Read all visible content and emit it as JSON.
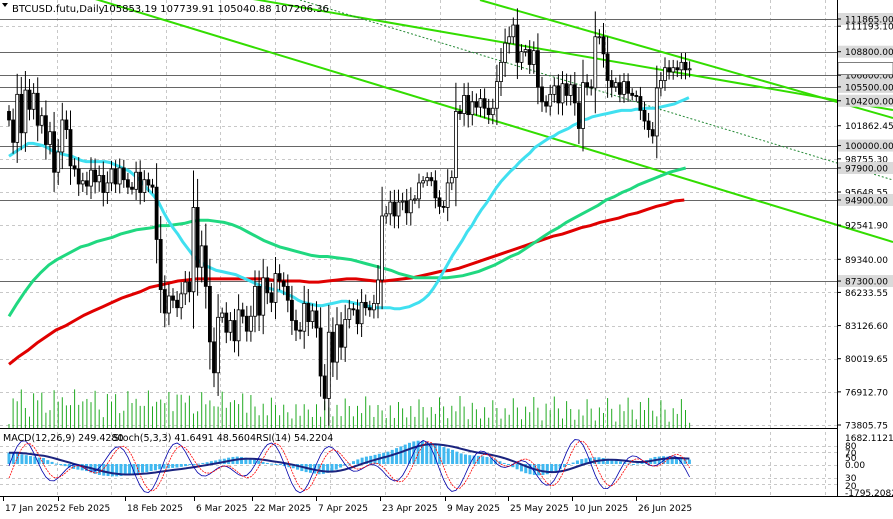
{
  "header": {
    "symbol": "BTCUSD.futu,Daily",
    "ohlc": "105853.19 107739.91 105040.88 107206.36"
  },
  "indicator_header": {
    "macd": "MACD(12,26,9) 249.4280",
    "stoch": "Stoch(5,3,3) 41.6491 48.5604",
    "rsi": "RSI(14) 54.2204"
  },
  "colors": {
    "background": "#ffffff",
    "grid": "#c8c8c8",
    "candle": "#000000",
    "ma_fast": "#40e0f0",
    "ma_mid": "#20d880",
    "ma_slow": "#e00000",
    "channel": "#33dd00",
    "macd_hist": "#40b8f0",
    "macd_signal": "#1a237e",
    "stoch_k": "#0000aa",
    "stoch_d": "#ff0000",
    "rsi": "#2020a0",
    "volume": "#22aa22",
    "level_box": "#dadada"
  },
  "chart_data": {
    "type": "candlestick",
    "timeframe": "Daily",
    "y_axis_labels": [
      "111865.00",
      "111193.10",
      "108800.00",
      "106600.00",
      "105500.00",
      "104200.00",
      "101862.45",
      "100000.00",
      "98755.30",
      "97900.00",
      "95648.55",
      "94900.00",
      "92541.90",
      "89340.00",
      "87300.00",
      "86233.55",
      "83126.60",
      "80019.65",
      "76912.70",
      "73805.75"
    ],
    "highlighted_levels": [
      111865.0,
      108800.0,
      106600.0,
      105500.0,
      104200.0,
      100000.0,
      97900.0,
      94900.0,
      87300.0
    ],
    "x_axis_labels": [
      "17 Jan 2025",
      "2 Feb 2025",
      "18 Feb 2025",
      "6 Mar 2025",
      "22 Mar 2025",
      "7 Apr 2025",
      "23 Apr 2025",
      "9 May 2025",
      "25 May 2025",
      "10 Jun 2025",
      "26 Jun 2025"
    ],
    "x_axis_label_positions": [
      0,
      16,
      32,
      48,
      64,
      80,
      96,
      112,
      128,
      144,
      160
    ],
    "ylim": [
      73805.75,
      113500
    ],
    "oscillator_axis_labels": [
      "1682.1121",
      "80",
      "70",
      "50",
      "0.00",
      "30",
      "20",
      "-1795.2082"
    ],
    "price_close": [
      102400,
      100300,
      104800,
      101200,
      105200,
      103400,
      104900,
      101900,
      102800,
      100100,
      101300,
      97500,
      99400,
      102400,
      101500,
      98100,
      97800,
      96400,
      96700,
      96200,
      97700,
      96600,
      97200,
      95600,
      96500,
      97800,
      96400,
      97900,
      96800,
      96100,
      95900,
      97500,
      95600,
      96800,
      96300,
      96100,
      91200,
      86500,
      84300,
      85900,
      85500,
      84800,
      86100,
      87200,
      86300,
      94200,
      88600,
      90600,
      86800,
      81600,
      78700,
      83900,
      84300,
      82500,
      83600,
      81700,
      84600,
      84000,
      82600,
      84000,
      86800,
      84100,
      87600,
      86200,
      85300,
      88000,
      87300,
      86800,
      85500,
      83600,
      82700,
      82600,
      85200,
      83500,
      84500,
      82900,
      78400,
      76300,
      82500,
      79700,
      83200,
      81100,
      83700,
      84700,
      84600,
      83300,
      85300,
      84800,
      84600,
      85200,
      87400,
      93400,
      93600,
      94700,
      93400,
      94700,
      94800,
      93700,
      94900,
      95000,
      96500,
      96700,
      97000,
      96700,
      95100,
      94300,
      94200,
      96500,
      97000,
      103200,
      103000,
      104700,
      102900,
      104100,
      103600,
      104400,
      103500,
      102900,
      103500,
      106000,
      107800,
      109600,
      110200,
      111300,
      107800,
      108800,
      109000,
      107600,
      108900,
      105500,
      104100,
      103700,
      104800,
      105600,
      104000,
      105800,
      104700,
      105700,
      104000,
      101600,
      105900,
      105500,
      105400,
      110200,
      110200,
      108600,
      106100,
      105500,
      105900,
      104800,
      106000,
      104900,
      104700,
      104600,
      103300,
      102300,
      101500,
      100900,
      105400,
      106100,
      107300,
      106900,
      107300,
      107100,
      107800,
      107100,
      107200
    ],
    "ma_fast": [
      99000,
      99300,
      99600,
      99900,
      100200,
      100200,
      100100,
      100000,
      99800,
      99500,
      99400,
      99200,
      99100,
      99000,
      98800,
      98600,
      98500,
      98500,
      98500,
      98500,
      98500,
      98400,
      98200,
      98000,
      97800,
      97600,
      97200,
      96800,
      96300,
      95800,
      95300,
      94700,
      93800,
      93000,
      92300,
      91700,
      91000,
      90400,
      89800,
      89300,
      89000,
      88700,
      88500,
      88300,
      88200,
      88100,
      88000,
      87900,
      87700,
      87500,
      87300,
      87100,
      86900,
      86700,
      86600,
      86500,
      86400,
      86200,
      86000,
      85800,
      85500,
      85300,
      85200,
      85100,
      85000,
      85000,
      85100,
      85200,
      85300,
      85400,
      85400,
      85300,
      85200,
      85100,
      85000,
      84900,
      84800,
      84800,
      84800,
      84800,
      84700,
      84700,
      84800,
      84900,
      85100,
      85300,
      85600,
      86000,
      86600,
      87300,
      88100,
      88900,
      89700,
      90400,
      91100,
      91900,
      92500,
      93300,
      94000,
      94600,
      95300,
      96000,
      96600,
      97100,
      97600,
      98000,
      98500,
      98900,
      99300,
      99800,
      100100,
      100400,
      100700,
      100900,
      101200,
      101400,
      101600,
      101900,
      102100,
      102400,
      102500,
      102700,
      102800,
      102900,
      103000,
      103100,
      103200,
      103300,
      103300,
      103300,
      103400,
      103400,
      103500,
      103500,
      103500,
      103600,
      103700,
      103800,
      103900,
      104100,
      104300,
      104500
    ],
    "ma_mid": [
      84000,
      85200,
      86300,
      87300,
      88100,
      88800,
      89300,
      89700,
      90100,
      90500,
      90700,
      91000,
      91200,
      91400,
      91700,
      91900,
      92100,
      92200,
      92300,
      92500,
      92500,
      92600,
      92700,
      92900,
      93000,
      93000,
      92900,
      92800,
      92600,
      92300,
      91900,
      91500,
      91100,
      90800,
      90500,
      90300,
      90100,
      89900,
      89700,
      89600,
      89600,
      89500,
      89400,
      89300,
      89100,
      88900,
      88700,
      88500,
      88300,
      88000,
      87800,
      87600,
      87600,
      87600,
      87600,
      87600,
      87700,
      87800,
      88000,
      88200,
      88500,
      88800,
      89200,
      89600,
      89900,
      90400,
      90900,
      91400,
      91900,
      92300,
      92800,
      93200,
      93600,
      94000,
      94400,
      94900,
      95200,
      95600,
      95900,
      96300,
      96600,
      96900,
      97200,
      97500,
      97700,
      97900
    ],
    "ma_slow": [
      79500,
      80200,
      80800,
      81500,
      82100,
      82700,
      83100,
      83600,
      84100,
      84500,
      84900,
      85300,
      85700,
      86000,
      86300,
      86700,
      86900,
      87100,
      87300,
      87400,
      87500,
      87500,
      87500,
      87500,
      87500,
      87500,
      87500,
      87500,
      87400,
      87300,
      87300,
      87300,
      87200,
      87200,
      87300,
      87400,
      87500,
      87500,
      87400,
      87300,
      87300,
      87400,
      87500,
      87600,
      87800,
      88000,
      88200,
      88300,
      88500,
      88800,
      89100,
      89400,
      89700,
      90000,
      90300,
      90600,
      90900,
      91200,
      91500,
      91700,
      92000,
      92300,
      92500,
      92800,
      93000,
      93200,
      93500,
      93700,
      94000,
      94300,
      94500,
      94800,
      94900
    ],
    "channel_lines": [
      {
        "from": [
          -999,
          113500
        ],
        "to": [
          176,
          102000
        ]
      },
      {
        "from": [
          -999,
          113500
        ],
        "to": [
          176,
          91800
        ]
      },
      {
        "from": [
          100,
          113500
        ],
        "to": [
          176,
          95400
        ]
      }
    ],
    "macd_hist": [
      640,
      640,
      600,
      550,
      500,
      450,
      420,
      360,
      340,
      220,
      120,
      20,
      -50,
      -120,
      -200,
      -280,
      -320,
      -360,
      -400,
      -480,
      -560,
      -620,
      -660,
      -680,
      -700,
      -700,
      -680,
      -640,
      -600,
      -560,
      -520,
      -480,
      -460,
      -400,
      -360,
      -300,
      -260,
      -240,
      -220,
      -200,
      -160,
      -120,
      -60,
      -20,
      20,
      60,
      100,
      160,
      200,
      260,
      300,
      360,
      400,
      420,
      400,
      360,
      300,
      240,
      180,
      120,
      60,
      20,
      -20,
      -60,
      -120,
      -180,
      -240,
      -320,
      -400,
      -460,
      -500,
      -540,
      -580,
      -560,
      -500,
      -420,
      -320,
      -200,
      -80,
      40,
      160,
      260,
      360,
      420,
      460,
      520,
      580,
      640,
      700,
      800,
      900,
      1000,
      1100,
      1200,
      1280,
      1320,
      1300,
      1250,
      1180,
      1100,
      1040,
      960,
      880,
      800,
      700,
      600,
      540,
      500,
      480,
      460,
      440,
      400,
      340,
      260,
      160,
      60,
      -60,
      -180,
      -300,
      -420,
      -520,
      -580,
      -620,
      -640,
      -620,
      -580,
      -500,
      -420,
      -300,
      -180,
      -40,
      80,
      200,
      280,
      320,
      360,
      380,
      380,
      340,
      300,
      260,
      200,
      140,
      100,
      40,
      0,
      40,
      120,
      220,
      320,
      400,
      420,
      440,
      420,
      400,
      360,
      300,
      260,
      249
    ],
    "macd_hist_ylim": [
      -1795.2082,
      1682.1121
    ]
  }
}
